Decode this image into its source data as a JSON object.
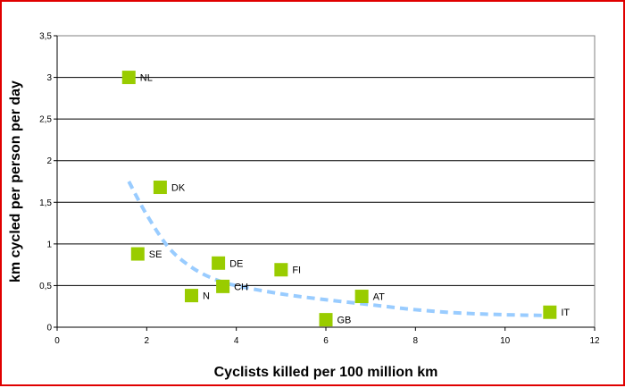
{
  "chart_data": {
    "type": "scatter",
    "xlabel": "Cyclists killed per 100 million km",
    "ylabel": "km cycled per person per day",
    "xlim": [
      0,
      12
    ],
    "ylim": [
      0,
      3.5
    ],
    "x_ticks": [
      "0",
      "2",
      "4",
      "6",
      "8",
      "10",
      "12"
    ],
    "y_ticks": [
      "0",
      "0,5",
      "1",
      "1,5",
      "2",
      "2,5",
      "3",
      "3,5"
    ],
    "grid": "horizontal",
    "points": [
      {
        "label": "NL",
        "x": 1.6,
        "y": 3.0
      },
      {
        "label": "DK",
        "x": 2.3,
        "y": 1.68
      },
      {
        "label": "SE",
        "x": 1.8,
        "y": 0.88
      },
      {
        "label": "DE",
        "x": 3.6,
        "y": 0.77
      },
      {
        "label": "FI",
        "x": 5.0,
        "y": 0.69
      },
      {
        "label": "CH",
        "x": 3.7,
        "y": 0.49
      },
      {
        "label": "N",
        "x": 3.0,
        "y": 0.38
      },
      {
        "label": "AT",
        "x": 6.8,
        "y": 0.37
      },
      {
        "label": "GB",
        "x": 6.0,
        "y": 0.09
      },
      {
        "label": "IT",
        "x": 11.0,
        "y": 0.18
      }
    ],
    "trendline": {
      "style": "dashed",
      "points": [
        [
          1.6,
          1.75
        ],
        [
          2.0,
          1.35
        ],
        [
          2.5,
          0.95
        ],
        [
          3.0,
          0.72
        ],
        [
          3.5,
          0.58
        ],
        [
          4.0,
          0.5
        ],
        [
          5.0,
          0.4
        ],
        [
          6.0,
          0.33
        ],
        [
          7.0,
          0.27
        ],
        [
          8.0,
          0.21
        ],
        [
          9.0,
          0.17
        ],
        [
          10.0,
          0.15
        ],
        [
          11.0,
          0.14
        ]
      ]
    },
    "colors": {
      "marker": "#99cc00",
      "trendline": "#99ccff",
      "grid": "#000000",
      "border": "#e00000"
    }
  }
}
